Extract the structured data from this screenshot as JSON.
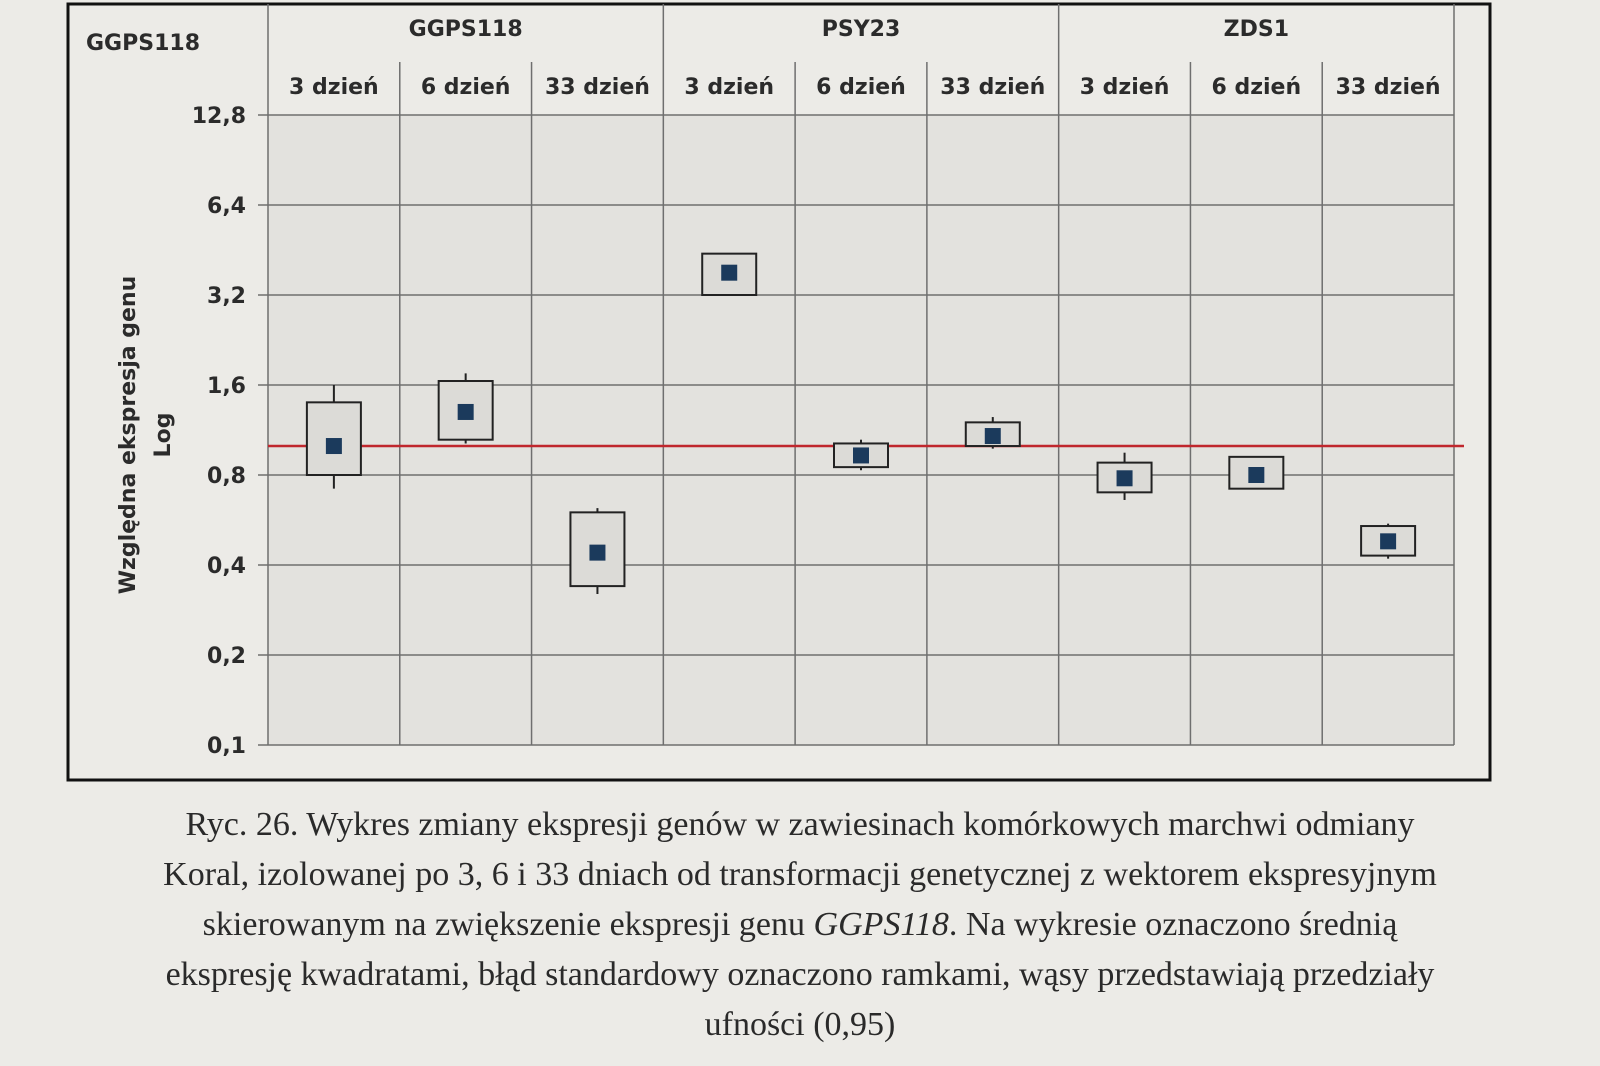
{
  "chart_data": {
    "type": "box",
    "corner_label": "GGPS118",
    "ylabel": "Względna ekspresja genu",
    "yscale_label": "Log",
    "y_scale": "log2",
    "ylim": [
      0.1,
      12.8
    ],
    "yticks": [
      12.8,
      6.4,
      3.2,
      1.6,
      0.8,
      0.4,
      0.2,
      0.1
    ],
    "ytick_labels": [
      "12,8",
      "6,4",
      "3,2",
      "1,6",
      "0,8",
      "0,4",
      "0,2",
      "0,1"
    ],
    "reference_line": 1.0,
    "reference_line_color": "#c0272d",
    "marker_color": "#1b3a5c",
    "groups": [
      {
        "name": "GGPS118",
        "categories": [
          {
            "label": "3 dzień",
            "mean": 1.0,
            "se_low": 0.8,
            "se_high": 1.4,
            "ci_low": 0.72,
            "ci_high": 1.6
          },
          {
            "label": "6 dzień",
            "mean": 1.3,
            "se_low": 1.05,
            "se_high": 1.65,
            "ci_low": 1.02,
            "ci_high": 1.75
          },
          {
            "label": "33 dzień",
            "mean": 0.44,
            "se_low": 0.34,
            "se_high": 0.6,
            "ci_low": 0.32,
            "ci_high": 0.62
          }
        ]
      },
      {
        "name": "PSY23",
        "categories": [
          {
            "label": "3 dzień",
            "mean": 3.8,
            "se_low": 3.2,
            "se_high": 4.4,
            "ci_low": 3.2,
            "ci_high": 4.4
          },
          {
            "label": "6 dzień",
            "mean": 0.93,
            "se_low": 0.85,
            "se_high": 1.02,
            "ci_low": 0.83,
            "ci_high": 1.05
          },
          {
            "label": "33 dzień",
            "mean": 1.08,
            "se_low": 1.0,
            "se_high": 1.2,
            "ci_low": 0.98,
            "ci_high": 1.25
          }
        ]
      },
      {
        "name": "ZDS1",
        "categories": [
          {
            "label": "3 dzień",
            "mean": 0.78,
            "se_low": 0.7,
            "se_high": 0.88,
            "ci_low": 0.66,
            "ci_high": 0.95
          },
          {
            "label": "6 dzień",
            "mean": 0.8,
            "se_low": 0.72,
            "se_high": 0.92,
            "ci_low": 0.72,
            "ci_high": 0.92
          },
          {
            "label": "33 dzień",
            "mean": 0.48,
            "se_low": 0.43,
            "se_high": 0.54,
            "ci_low": 0.42,
            "ci_high": 0.55
          }
        ]
      }
    ]
  },
  "caption": {
    "line1": "Ryc. 26. Wykres zmiany ekspresji genów w zawiesinach komórkowych marchwi odmiany",
    "line2": "Koral, izolowanej po 3, 6 i 33 dniach  od transformacji genetycznej z wektorem ekspresyjnym",
    "line3_pre": "skierowanym na zwiększenie ekspresji genu ",
    "line3_gene": "GGPS118",
    "line3_post": ". Na wykresie oznaczono średnią",
    "line4": "ekspresję kwadratami, błąd standardowy oznaczono ramkami, wąsy przedstawiają przedziały",
    "line5": "ufności (0,95)"
  }
}
